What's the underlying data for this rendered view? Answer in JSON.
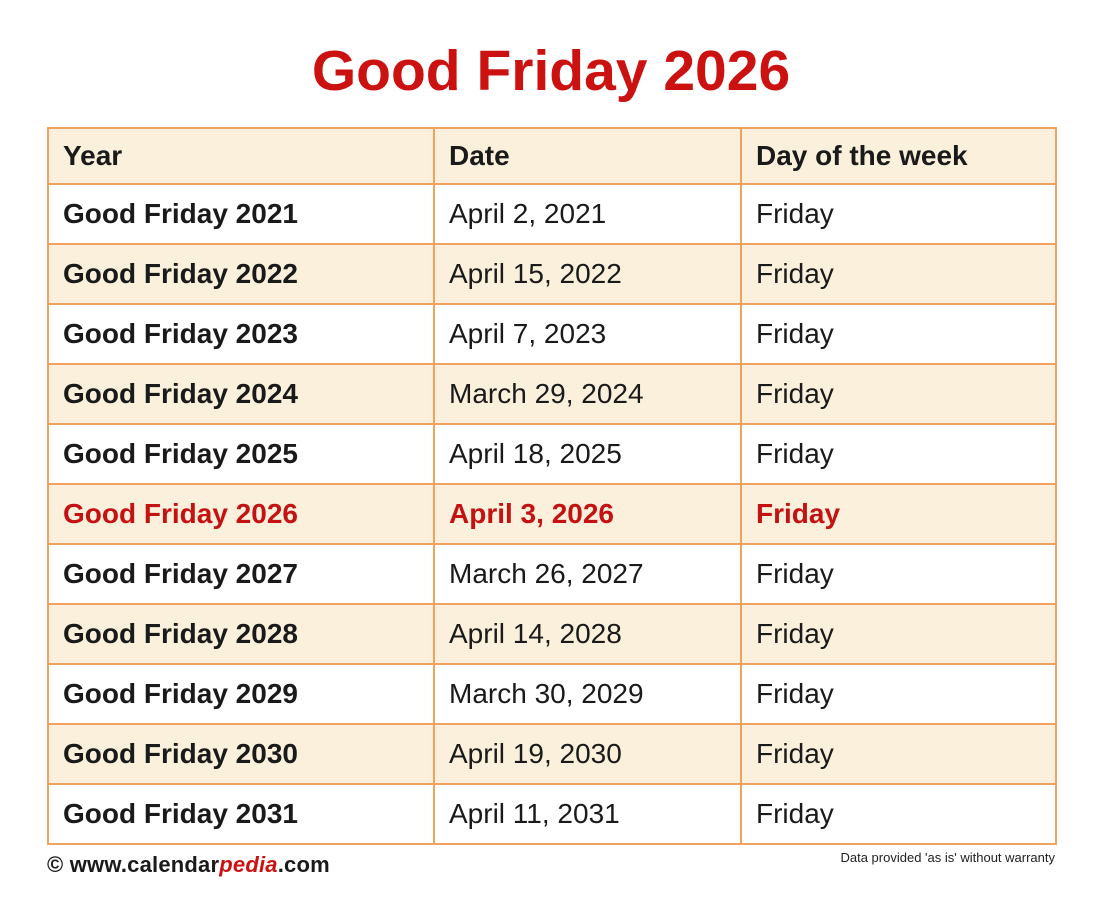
{
  "page": {
    "title": "Good Friday 2026"
  },
  "colors": {
    "title_red": "#CC1111",
    "highlight_red": "#C41111",
    "row_cream": "#FAF0DC",
    "row_white": "#FFFFFF",
    "border_orange": "#F0A35F",
    "text_black": "#1A1A1A"
  },
  "table": {
    "columns": [
      "Year",
      "Date",
      "Day of the week"
    ],
    "rows": [
      {
        "year": "Good Friday 2021",
        "date": "April 2, 2021",
        "day": "Friday",
        "highlight": false
      },
      {
        "year": "Good Friday 2022",
        "date": "April 15, 2022",
        "day": "Friday",
        "highlight": false
      },
      {
        "year": "Good Friday 2023",
        "date": "April 7, 2023",
        "day": "Friday",
        "highlight": false
      },
      {
        "year": "Good Friday 2024",
        "date": "March 29, 2024",
        "day": "Friday",
        "highlight": false
      },
      {
        "year": "Good Friday 2025",
        "date": "April 18, 2025",
        "day": "Friday",
        "highlight": false
      },
      {
        "year": "Good Friday 2026",
        "date": "April 3, 2026",
        "day": "Friday",
        "highlight": true
      },
      {
        "year": "Good Friday 2027",
        "date": "March 26, 2027",
        "day": "Friday",
        "highlight": false
      },
      {
        "year": "Good Friday 2028",
        "date": "April 14, 2028",
        "day": "Friday",
        "highlight": false
      },
      {
        "year": "Good Friday 2029",
        "date": "March 30, 2029",
        "day": "Friday",
        "highlight": false
      },
      {
        "year": "Good Friday 2030",
        "date": "April 19, 2030",
        "day": "Friday",
        "highlight": false
      },
      {
        "year": "Good Friday 2031",
        "date": "April 11, 2031",
        "day": "Friday",
        "highlight": false
      }
    ]
  },
  "footer": {
    "copyright_symbol": "© ",
    "site_prefix": "www.calendar",
    "site_accent": "pedia",
    "site_suffix": ".com",
    "disclaimer": "Data provided 'as is' without warranty"
  }
}
